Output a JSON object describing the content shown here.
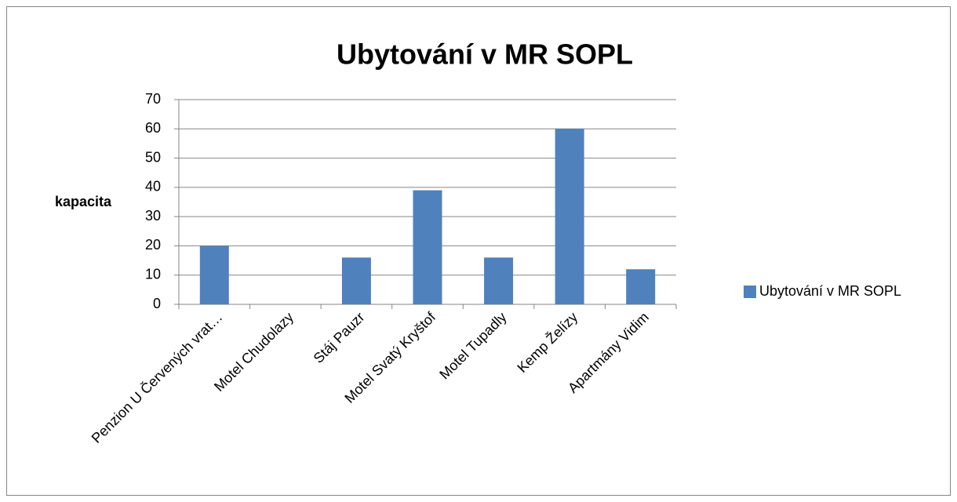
{
  "chart_data": {
    "type": "bar",
    "title": "Ubytování v MR SOPL",
    "y_label": "kapacita",
    "categories": [
      "Penzion U Červených vrat…",
      "Motel Chudolazy",
      "Stáj Pauzr",
      "Motel Svatý Kryštof",
      "Motel Tupadly",
      "Kemp Želízy",
      "Apartmány Vidim"
    ],
    "series": [
      {
        "name": "Ubytování v MR SOPL",
        "color": "#4f81bd",
        "values": [
          20,
          0,
          16,
          39,
          16,
          60,
          12
        ]
      }
    ],
    "ylim": [
      0,
      70
    ],
    "yticks": [
      0,
      10,
      20,
      30,
      40,
      50,
      60,
      70
    ],
    "grid": true,
    "legend": "right"
  }
}
